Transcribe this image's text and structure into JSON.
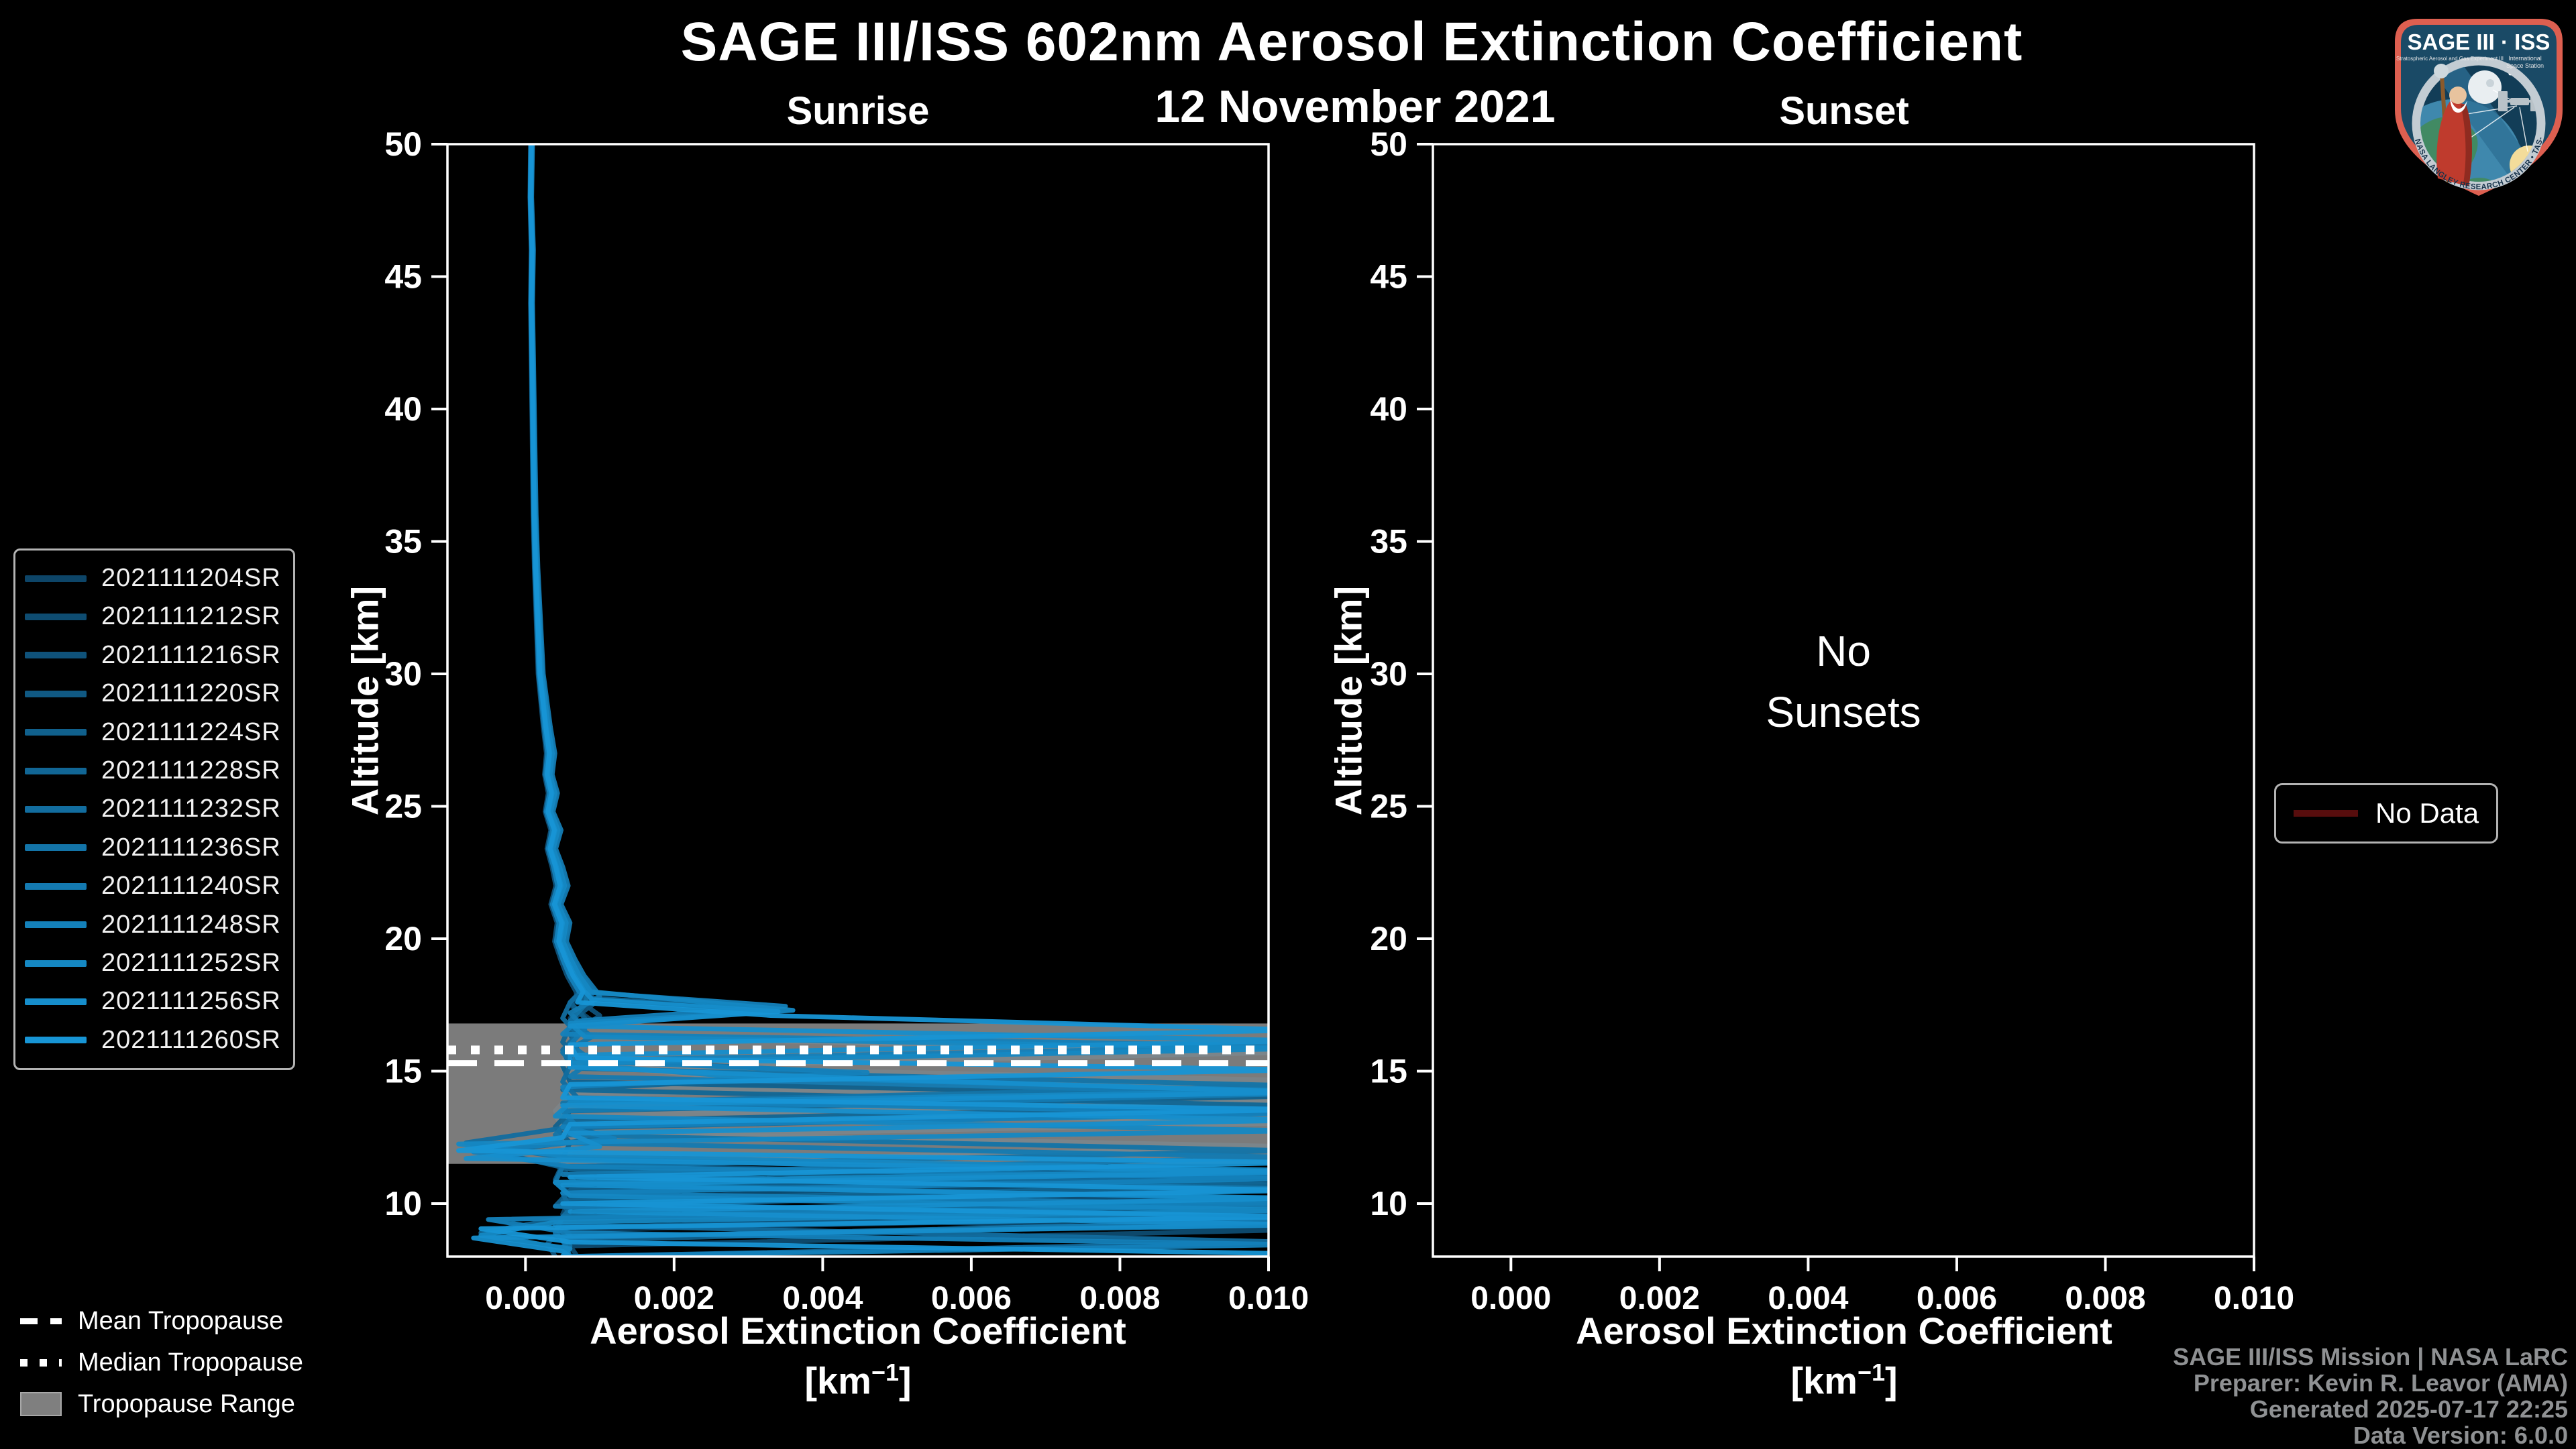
{
  "title": "SAGE III/ISS 602nm Aerosol Extinction Coefficient",
  "subtitle": "12 November 2021",
  "panels": {
    "sunrise": {
      "title": "Sunrise"
    },
    "sunset": {
      "title": "Sunset",
      "empty_lines": [
        "No",
        "Sunsets"
      ]
    },
    "xlabel": "Aerosol Extinction Coefficient",
    "xunit_pre": "[km",
    "xunit_sup": "−1",
    "xunit_post": "]",
    "ylabel": "Altitude [km]"
  },
  "legends": {
    "tropopause": {
      "mean": "Mean Tropopause",
      "median": "Median Tropopause",
      "range": "Tropopause Range"
    },
    "no_data": "No Data"
  },
  "footer": {
    "line1": "SAGE III/ISS Mission | NASA LaRC",
    "line2": "Preparer: Kevin R. Leavor (AMA)",
    "line3": "Generated 2025-07-17 22:25",
    "line4": "Data Version: 6.0.0"
  },
  "logo": {
    "title": "SAGE III · ISS",
    "sub_left": "Stratospheric Aerosol and Gas Experiment III",
    "sub_right_1": "International",
    "sub_right_2": "Space Station",
    "ring_text": "BALL • NASA LANGLEY RESEARCH CENTER • TAS-I • ESA"
  },
  "colors": {
    "background": "#000000",
    "frame": "#ffffff",
    "tropopause_band": "#8c8c8c",
    "no_data_line": "#570d0d",
    "footer_text": "#8f9193"
  },
  "chart_data": {
    "type": "line",
    "title": "SAGE III/ISS 602nm Aerosol Extinction Coefficient",
    "subtitle": "12 November 2021",
    "xlabel": "Aerosol Extinction Coefficient [km-1]",
    "ylabel": "Altitude [km]",
    "legend_position": "left",
    "grid": false,
    "axes": {
      "x_min": -0.00105,
      "x_max": 0.01,
      "y_min": 8,
      "y_max": 50,
      "x_ticks": [
        0,
        0.002,
        0.004,
        0.006,
        0.008,
        0.01
      ],
      "x_tick_labels": [
        "0.000",
        "0.002",
        "0.004",
        "0.006",
        "0.008",
        "0.010"
      ],
      "y_ticks": [
        10,
        15,
        20,
        25,
        30,
        35,
        40,
        45,
        50
      ]
    },
    "tropopause": {
      "mean_km": 15.3,
      "median_km": 15.8,
      "range_low_km": 11.5,
      "range_high_km": 16.8
    },
    "empty_text_altitudes": [
      30.3,
      28.0
    ],
    "base_profile": [
      [
        50,
        8e-05
      ],
      [
        48,
        7e-05
      ],
      [
        46,
        9e-05
      ],
      [
        44,
        8e-05
      ],
      [
        42,
        9e-05
      ],
      [
        40,
        0.0001
      ],
      [
        38,
        0.00011
      ],
      [
        36,
        0.00012
      ],
      [
        34,
        0.00014
      ],
      [
        32,
        0.00017
      ],
      [
        30,
        0.0002
      ],
      [
        29,
        0.00024
      ],
      [
        28,
        0.00028
      ],
      [
        27,
        0.00033
      ],
      [
        26.2,
        0.0003
      ],
      [
        25.5,
        0.00036
      ],
      [
        24.8,
        0.00031
      ],
      [
        24.1,
        0.0004
      ],
      [
        23.4,
        0.00034
      ],
      [
        22.7,
        0.00042
      ],
      [
        22,
        0.00048
      ],
      [
        21.3,
        0.0004
      ],
      [
        20.6,
        0.0005
      ],
      [
        19.9,
        0.00046
      ],
      [
        19.2,
        0.00056
      ],
      [
        18.6,
        0.00066
      ],
      [
        18,
        0.0008
      ]
    ],
    "series": [
      {
        "name": "2021111204SR",
        "color": "#0D4568",
        "upper_scale": 0.9,
        "lower": [
          [
            17.6,
            0.0008
          ],
          [
            17,
            0.0006
          ],
          [
            16.4,
            0.0007
          ],
          [
            15.8,
            0.0005
          ],
          [
            15.2,
            0.0006
          ],
          [
            14.65,
            0.0104
          ],
          [
            14.1,
            0.0006
          ],
          [
            13.5,
            0.0004
          ],
          [
            12.9,
            0.0007
          ],
          [
            12.3,
            0.0005
          ],
          [
            11.7,
            0.0006
          ],
          [
            11.15,
            0.0103
          ],
          [
            10.6,
            0.0005
          ],
          [
            10,
            0.0006
          ],
          [
            9.55,
            0.0103
          ],
          [
            9,
            0.0004
          ],
          [
            8.5,
            0.0006
          ],
          [
            8,
            0.0005
          ]
        ]
      },
      {
        "name": "2021111212SR",
        "color": "#0E4C71",
        "upper_scale": 1.0,
        "lower": [
          [
            17.5,
            0.0006
          ],
          [
            16.9,
            0.0009
          ],
          [
            16.3,
            0.0006
          ],
          [
            15.7,
            0.0007
          ],
          [
            15.1,
            0.0005
          ],
          [
            14.5,
            0.0007
          ],
          [
            13.85,
            0.0104
          ],
          [
            13.3,
            0.0005
          ],
          [
            12.7,
            0.0004
          ],
          [
            12.1,
            0.0006
          ],
          [
            11.5,
            0.0005
          ],
          [
            10.85,
            0.0103
          ],
          [
            10.2,
            0.0006
          ],
          [
            9.6,
            0.0005
          ],
          [
            9,
            0.0102
          ],
          [
            8.4,
            0.0006
          ],
          [
            8,
            0.0007
          ]
        ]
      },
      {
        "name": "2021111216SR",
        "color": "#0F527A",
        "upper_scale": 0.85,
        "lower": [
          [
            17.7,
            0.0007
          ],
          [
            17.1,
            0.001
          ],
          [
            16.5,
            0.0007
          ],
          [
            15.9,
            0.0006
          ],
          [
            15.3,
            0.0005
          ],
          [
            14.8,
            0.0026
          ],
          [
            14.2,
            0.0007
          ],
          [
            13.6,
            0.0005
          ],
          [
            13.05,
            0.0104
          ],
          [
            12.5,
            0.0004
          ],
          [
            11.9,
            0.0006
          ],
          [
            11.3,
            0.0005
          ],
          [
            10.7,
            0.0007
          ],
          [
            10.05,
            0.0103
          ],
          [
            9.4,
            0.0004
          ],
          [
            8.8,
            0.0006
          ],
          [
            8,
            0.0005
          ]
        ]
      },
      {
        "name": "2021111220SR",
        "color": "#105983",
        "upper_scale": 1.1,
        "lower": [
          [
            17.5,
            0.0009
          ],
          [
            16.9,
            0.0006
          ],
          [
            16.3,
            0.0008
          ],
          [
            15.72,
            0.0104
          ],
          [
            15.1,
            0.0006
          ],
          [
            14.5,
            0.0005
          ],
          [
            13.9,
            0.0007
          ],
          [
            13.3,
            0.0004
          ],
          [
            12.7,
            0.0006
          ],
          [
            12.15,
            0.0104
          ],
          [
            11.5,
            0.0005
          ],
          [
            10.9,
            0.0004
          ],
          [
            10.3,
            0.0006
          ],
          [
            9.7,
            0.0102
          ],
          [
            9.1,
            0.0005
          ],
          [
            8.5,
            0.0003
          ],
          [
            8,
            0.0004
          ]
        ]
      },
      {
        "name": "2021111224SR",
        "color": "#10608C",
        "upper_scale": 0.92,
        "lower": [
          [
            17.6,
            0.0006
          ],
          [
            17,
            0.0008
          ],
          [
            16.4,
            0.0006
          ],
          [
            15.8,
            0.0007
          ],
          [
            15.2,
            0.0005
          ],
          [
            14.6,
            0.0006
          ],
          [
            14.05,
            0.0103
          ],
          [
            13.5,
            0.0006
          ],
          [
            12.9,
            0.0004
          ],
          [
            12.3,
            0.0006
          ],
          [
            11.7,
            0.0005
          ],
          [
            11.1,
            0.0102
          ],
          [
            10.5,
            0.0006
          ],
          [
            9.9,
            0.0004
          ],
          [
            9.3,
            0.0103
          ],
          [
            8.6,
            0.0005
          ],
          [
            8,
            0.0006
          ]
        ]
      },
      {
        "name": "2021111228SR",
        "color": "#116695",
        "upper_scale": 1.15,
        "lower": [
          [
            17.8,
            0.0007
          ],
          [
            17.3,
            0.0034
          ],
          [
            16.7,
            0.0006
          ],
          [
            16.1,
            0.0005
          ],
          [
            15.5,
            0.0007
          ],
          [
            14.9,
            0.0045
          ],
          [
            14.3,
            0.0005
          ],
          [
            13.7,
            0.0103
          ],
          [
            13.1,
            0.0005
          ],
          [
            12.5,
            0.0011
          ],
          [
            11.95,
            -0.0004
          ],
          [
            11.3,
            0.0006
          ],
          [
            10.7,
            0.0102
          ],
          [
            10.1,
            0.0005
          ],
          [
            9.5,
            0.0006
          ],
          [
            8.9,
            -0.0006
          ],
          [
            8.3,
            0.0005
          ],
          [
            8,
            0.0006
          ]
        ]
      },
      {
        "name": "2021111232SR",
        "color": "#126D9F",
        "upper_scale": 0.95,
        "lower": [
          [
            17.6,
            0.0006
          ],
          [
            17,
            0.0005
          ],
          [
            16.4,
            0.0007
          ],
          [
            15.8,
            0.0005
          ],
          [
            15.2,
            0.0006
          ],
          [
            14.6,
            0.0005
          ],
          [
            14,
            0.0007
          ],
          [
            13.45,
            0.0103
          ],
          [
            12.85,
            0.0005
          ],
          [
            12.3,
            -0.0008
          ],
          [
            11.7,
            0.0006
          ],
          [
            11.05,
            0.0103
          ],
          [
            10.4,
            0.0005
          ],
          [
            9.8,
            0.0006
          ],
          [
            9.2,
            0.0004
          ],
          [
            8.55,
            0.0103
          ],
          [
            8,
            0.0005
          ]
        ]
      },
      {
        "name": "2021111236SR",
        "color": "#1374A8",
        "upper_scale": 1.05,
        "lower": [
          [
            17.5,
            0.0008
          ],
          [
            16.9,
            0.0006
          ],
          [
            16.3,
            0.0009
          ],
          [
            15.7,
            0.0005
          ],
          [
            15.1,
            0.0007
          ],
          [
            14.45,
            0.0104
          ],
          [
            13.8,
            0.0005
          ],
          [
            13.2,
            0.0006
          ],
          [
            12.6,
            0.0004
          ],
          [
            12,
            0.0103
          ],
          [
            11.4,
            0.0005
          ],
          [
            10.8,
            0.0004
          ],
          [
            10.15,
            0.0104
          ],
          [
            9.5,
            0.0005
          ],
          [
            8.9,
            0.0004
          ],
          [
            8.4,
            0.0006
          ],
          [
            8,
            0.0005
          ]
        ]
      },
      {
        "name": "2021111240SR",
        "color": "#147AB1",
        "upper_scale": 1.2,
        "lower": [
          [
            17.8,
            0.001
          ],
          [
            17.2,
            0.0006
          ],
          [
            16.6,
            0.0008
          ],
          [
            16,
            0.0006
          ],
          [
            15.4,
            0.0009
          ],
          [
            14.8,
            0.0006
          ],
          [
            14.15,
            0.0104
          ],
          [
            13.5,
            0.0005
          ],
          [
            12.9,
            0.0007
          ],
          [
            12.3,
            0.0004
          ],
          [
            11.75,
            0.0104
          ],
          [
            11.1,
            0.0005
          ],
          [
            10.55,
            0.0104
          ],
          [
            9.9,
            0.0004
          ],
          [
            9.35,
            0.0104
          ],
          [
            8.7,
            0.0005
          ],
          [
            8,
            0.0006
          ]
        ]
      },
      {
        "name": "2021111248SR",
        "color": "#1481BA",
        "upper_scale": 0.9,
        "lower": [
          [
            17.45,
            0.0035
          ],
          [
            16.9,
            0.0007
          ],
          [
            16.4,
            0.0005
          ],
          [
            15.95,
            0.0104
          ],
          [
            15.4,
            0.0006
          ],
          [
            14.95,
            0.0046
          ],
          [
            14.4,
            0.0005
          ],
          [
            13.9,
            0.0006
          ],
          [
            13.4,
            0.0104
          ],
          [
            12.9,
            0.0005
          ],
          [
            12.45,
            0.0012
          ],
          [
            11.95,
            -0.0007
          ],
          [
            11.4,
            0.0006
          ],
          [
            10.95,
            0.0104
          ],
          [
            10.4,
            0.0005
          ],
          [
            9.95,
            0.0104
          ],
          [
            9.4,
            -0.0005
          ],
          [
            8.9,
            0.0006
          ],
          [
            8.45,
            0.0104
          ],
          [
            8,
            0.0005
          ]
        ]
      },
      {
        "name": "2021111252SR",
        "color": "#1588C3",
        "upper_scale": 1.1,
        "lower": [
          [
            17.3,
            0.0036
          ],
          [
            16.8,
            0.0006
          ],
          [
            16.3,
            0.0008
          ],
          [
            15.85,
            0.0104
          ],
          [
            15.3,
            0.0005
          ],
          [
            14.8,
            0.0028
          ],
          [
            14.25,
            0.0104
          ],
          [
            13.8,
            0.0006
          ],
          [
            13.3,
            0.0004
          ],
          [
            12.75,
            0.0104
          ],
          [
            12.25,
            -0.0009
          ],
          [
            11.8,
            0.0005
          ],
          [
            11.25,
            0.0104
          ],
          [
            10.8,
            0.0004
          ],
          [
            10.3,
            0.0006
          ],
          [
            9.75,
            0.0104
          ],
          [
            9.3,
            0.0004
          ],
          [
            8.8,
            -0.0006
          ],
          [
            8.3,
            0.0006
          ],
          [
            8,
            0.0005
          ]
        ]
      },
      {
        "name": "2021111256SR",
        "color": "#168ECC",
        "upper_scale": 1.0,
        "lower": [
          [
            17.7,
            0.0009
          ],
          [
            17.25,
            0.0034
          ],
          [
            16.7,
            0.0006
          ],
          [
            16.15,
            0.0105
          ],
          [
            15.6,
            0.0006
          ],
          [
            15.15,
            0.0006
          ],
          [
            14.7,
            0.0047
          ],
          [
            14.2,
            0.0105
          ],
          [
            13.7,
            0.0005
          ],
          [
            13.15,
            0.0105
          ],
          [
            12.65,
            0.0006
          ],
          [
            12.15,
            0.001
          ],
          [
            11.7,
            -0.0008
          ],
          [
            11.2,
            0.0105
          ],
          [
            10.7,
            0.0005
          ],
          [
            10.2,
            0.0105
          ],
          [
            9.7,
            0.0006
          ],
          [
            9.2,
            0.0105
          ],
          [
            8.7,
            -0.0007
          ],
          [
            8.2,
            0.0005
          ],
          [
            8,
            0.0006
          ]
        ]
      },
      {
        "name": "2021111260SR",
        "color": "#1795D5",
        "upper_scale": 0.97,
        "lower": [
          [
            17.6,
            0.0007
          ],
          [
            17.1,
            0.0033
          ],
          [
            16.55,
            0.0105
          ],
          [
            16,
            0.0006
          ],
          [
            15.5,
            0.0007
          ],
          [
            15.05,
            0.0105
          ],
          [
            14.5,
            0.0006
          ],
          [
            14,
            0.0005
          ],
          [
            13.55,
            0.0105
          ],
          [
            13,
            0.0006
          ],
          [
            12.5,
            0.0005
          ],
          [
            12,
            -0.0009
          ],
          [
            11.55,
            0.0105
          ],
          [
            11,
            0.0006
          ],
          [
            10.5,
            0.0105
          ],
          [
            10,
            0.0005
          ],
          [
            9.5,
            0.0105
          ],
          [
            9.05,
            -0.0006
          ],
          [
            8.55,
            0.0006
          ],
          [
            8.1,
            0.0105
          ],
          [
            8,
            0.0104
          ]
        ]
      }
    ]
  }
}
